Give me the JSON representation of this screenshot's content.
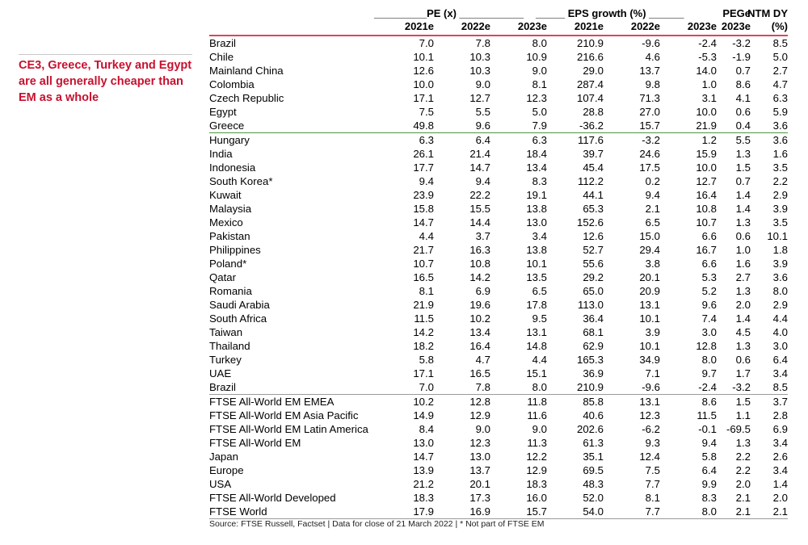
{
  "callout": "CE3, Greece, Turkey and Egypt are all generally cheaper than EM as a whole",
  "headers": {
    "pe": "_________PE (x) ___________",
    "eps": "_____ EPS growth (%) ______",
    "peg": "PEGe",
    "dy": "NTM DY",
    "years": [
      "2021e",
      "2022e",
      "2023e",
      "2021e",
      "2022e",
      "2023e",
      "2023e",
      "(%)"
    ]
  },
  "rows": [
    {
      "name": "Brazil",
      "values": [
        "7.0",
        "7.8",
        "8.0",
        "210.9",
        "-9.6",
        "-2.4",
        "-3.2",
        "8.5"
      ]
    },
    {
      "name": "Chile",
      "values": [
        "10.1",
        "10.3",
        "10.9",
        "216.6",
        "4.6",
        "-5.3",
        "-1.9",
        "5.0"
      ]
    },
    {
      "name": "Mainland China",
      "values": [
        "12.6",
        "10.3",
        "9.0",
        "29.0",
        "13.7",
        "14.0",
        "0.7",
        "2.7"
      ]
    },
    {
      "name": "Colombia",
      "values": [
        "10.0",
        "9.0",
        "8.1",
        "287.4",
        "9.8",
        "1.0",
        "8.6",
        "4.7"
      ]
    },
    {
      "name": "Czech Republic",
      "values": [
        "17.1",
        "12.7",
        "12.3",
        "107.4",
        "71.3",
        "3.1",
        "4.1",
        "6.3"
      ]
    },
    {
      "name": "Egypt",
      "values": [
        "7.5",
        "5.5",
        "5.0",
        "28.8",
        "27.0",
        "10.0",
        "0.6",
        "5.9"
      ]
    },
    {
      "name": "Greece",
      "values": [
        "49.8",
        "9.6",
        "7.9",
        "-36.2",
        "15.7",
        "21.9",
        "0.4",
        "3.6"
      ]
    },
    {
      "name": "Hungary",
      "values": [
        "6.3",
        "6.4",
        "6.3",
        "117.6",
        "-3.2",
        "1.2",
        "5.5",
        "3.6"
      ]
    },
    {
      "name": "India",
      "values": [
        "26.1",
        "21.4",
        "18.4",
        "39.7",
        "24.6",
        "15.9",
        "1.3",
        "1.6"
      ]
    },
    {
      "name": "Indonesia",
      "values": [
        "17.7",
        "14.7",
        "13.4",
        "45.4",
        "17.5",
        "10.0",
        "1.5",
        "3.5"
      ]
    },
    {
      "name": "South Korea*",
      "values": [
        "9.4",
        "9.4",
        "8.3",
        "112.2",
        "0.2",
        "12.7",
        "0.7",
        "2.2"
      ]
    },
    {
      "name": "Kuwait",
      "values": [
        "23.9",
        "22.2",
        "19.1",
        "44.1",
        "9.4",
        "16.4",
        "1.4",
        "2.9"
      ]
    },
    {
      "name": "Malaysia",
      "values": [
        "15.8",
        "15.5",
        "13.8",
        "65.3",
        "2.1",
        "10.8",
        "1.4",
        "3.9"
      ]
    },
    {
      "name": "Mexico",
      "values": [
        "14.7",
        "14.4",
        "13.0",
        "152.6",
        "6.5",
        "10.7",
        "1.3",
        "3.5"
      ]
    },
    {
      "name": "Pakistan",
      "values": [
        "4.4",
        "3.7",
        "3.4",
        "12.6",
        "15.0",
        "6.6",
        "0.6",
        "10.1"
      ]
    },
    {
      "name": "Philippines",
      "values": [
        "21.7",
        "16.3",
        "13.8",
        "52.7",
        "29.4",
        "16.7",
        "1.0",
        "1.8"
      ]
    },
    {
      "name": "Poland*",
      "values": [
        "10.7",
        "10.8",
        "10.1",
        "55.6",
        "3.8",
        "6.6",
        "1.6",
        "3.9"
      ]
    },
    {
      "name": "Qatar",
      "values": [
        "16.5",
        "14.2",
        "13.5",
        "29.2",
        "20.1",
        "5.3",
        "2.7",
        "3.6"
      ]
    },
    {
      "name": "Romania",
      "values": [
        "8.1",
        "6.9",
        "6.5",
        "65.0",
        "20.9",
        "5.2",
        "1.3",
        "8.0"
      ]
    },
    {
      "name": "Saudi Arabia",
      "values": [
        "21.9",
        "19.6",
        "17.8",
        "113.0",
        "13.1",
        "9.6",
        "2.0",
        "2.9"
      ]
    },
    {
      "name": "South Africa",
      "values": [
        "11.5",
        "10.2",
        "9.5",
        "36.4",
        "10.1",
        "7.4",
        "1.4",
        "4.4"
      ]
    },
    {
      "name": "Taiwan",
      "values": [
        "14.2",
        "13.4",
        "13.1",
        "68.1",
        "3.9",
        "3.0",
        "4.5",
        "4.0"
      ]
    },
    {
      "name": "Thailand",
      "values": [
        "18.2",
        "16.4",
        "14.8",
        "62.9",
        "10.1",
        "12.8",
        "1.3",
        "3.0"
      ]
    },
    {
      "name": "Turkey",
      "values": [
        "5.8",
        "4.7",
        "4.4",
        "165.3",
        "34.9",
        "8.0",
        "0.6",
        "6.4"
      ]
    },
    {
      "name": "UAE",
      "values": [
        "17.1",
        "16.5",
        "15.1",
        "36.9",
        "7.1",
        "9.7",
        "1.7",
        "3.4"
      ]
    },
    {
      "name": "Brazil",
      "values": [
        "7.0",
        "7.8",
        "8.0",
        "210.9",
        "-9.6",
        "-2.4",
        "-3.2",
        "8.5"
      ]
    },
    {
      "name": "FTSE All-World EM EMEA",
      "values": [
        "10.2",
        "12.8",
        "11.8",
        "85.8",
        "13.1",
        "8.6",
        "1.5",
        "3.7"
      ]
    },
    {
      "name": "FTSE All-World EM Asia Pacific",
      "values": [
        "14.9",
        "12.9",
        "11.6",
        "40.6",
        "12.3",
        "11.5",
        "1.1",
        "2.8"
      ]
    },
    {
      "name": "FTSE All-World EM Latin America",
      "values": [
        "8.4",
        "9.0",
        "9.0",
        "202.6",
        "-6.2",
        "-0.1",
        "-69.5",
        "6.9"
      ]
    },
    {
      "name": "FTSE All-World EM",
      "values": [
        "13.0",
        "12.3",
        "11.3",
        "61.3",
        "9.3",
        "9.4",
        "1.3",
        "3.4"
      ]
    },
    {
      "name": "Japan",
      "values": [
        "14.7",
        "13.0",
        "12.2",
        "35.1",
        "12.4",
        "5.8",
        "2.2",
        "2.6"
      ]
    },
    {
      "name": "Europe",
      "values": [
        "13.9",
        "13.7",
        "12.9",
        "69.5",
        "7.5",
        "6.4",
        "2.2",
        "3.4"
      ]
    },
    {
      "name": "USA",
      "values": [
        "21.2",
        "20.1",
        "18.3",
        "48.3",
        "7.7",
        "9.9",
        "2.0",
        "1.4"
      ]
    },
    {
      "name": "FTSE All-World Developed",
      "values": [
        "18.3",
        "17.3",
        "16.0",
        "52.0",
        "8.1",
        "8.3",
        "2.1",
        "2.0"
      ]
    },
    {
      "name": "FTSE World",
      "values": [
        "17.9",
        "16.9",
        "15.7",
        "54.0",
        "7.7",
        "8.0",
        "2.1",
        "2.1"
      ]
    }
  ],
  "colors": {
    "accent_red": "#c8102e",
    "header_rule_red": "#d8465a",
    "separator_green": "#4e9a3a"
  },
  "source": "Source: FTSE Russell, Factset | Data for close of 21 March 2022 | * Not part of FTSE EM"
}
